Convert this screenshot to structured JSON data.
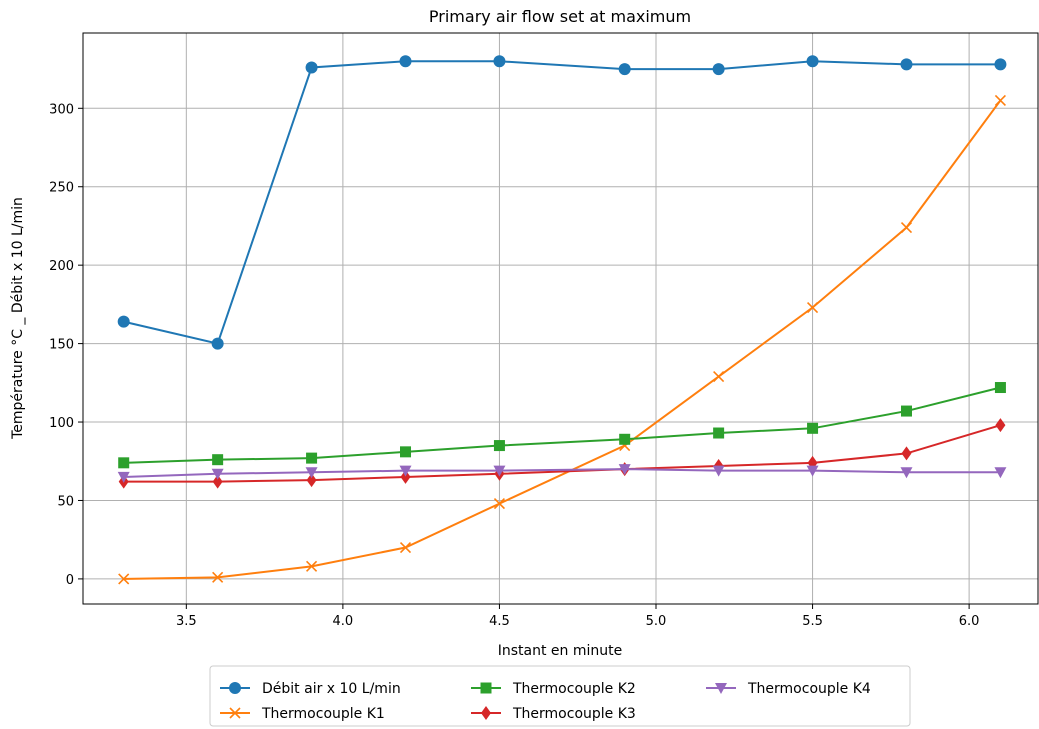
{
  "chart_data": {
    "type": "line",
    "title": "Primary air flow set at maximum",
    "xlabel": "Instant en minute",
    "ylabel": "Température °C _ Débit x 10 L/min",
    "xlim": [
      3.17,
      6.22
    ],
    "ylim": [
      -16,
      348
    ],
    "xticks": [
      3.5,
      4.0,
      4.5,
      5.0,
      5.5,
      6.0
    ],
    "xtick_labels": [
      "3.5",
      "4.0",
      "4.5",
      "5.0",
      "5.5",
      "6.0"
    ],
    "yticks": [
      0,
      50,
      100,
      150,
      200,
      250,
      300
    ],
    "ytick_labels": [
      "0",
      "50",
      "100",
      "150",
      "200",
      "250",
      "300"
    ],
    "grid": true,
    "legend_position": "bottom-center outside",
    "x": [
      3.3,
      3.6,
      3.9,
      4.2,
      4.5,
      4.9,
      5.2,
      5.5,
      5.8,
      6.1
    ],
    "series": [
      {
        "name": "Débit air x 10 L/min",
        "color": "#1f77b4",
        "marker": "circle",
        "values": [
          164,
          150,
          326,
          330,
          330,
          325,
          325,
          330,
          328,
          328
        ]
      },
      {
        "name": "Thermocouple K1",
        "color": "#ff7f0e",
        "marker": "x",
        "values": [
          0,
          1,
          8,
          20,
          48,
          85,
          129,
          173,
          224,
          305
        ]
      },
      {
        "name": "Thermocouple K2",
        "color": "#2ca02c",
        "marker": "square",
        "values": [
          74,
          76,
          77,
          81,
          85,
          89,
          93,
          96,
          107,
          122
        ]
      },
      {
        "name": "Thermocouple K3",
        "color": "#d62728",
        "marker": "diamond",
        "values": [
          62,
          62,
          63,
          65,
          67,
          70,
          72,
          74,
          80,
          98
        ]
      },
      {
        "name": "Thermocouple K4",
        "color": "#9467bd",
        "marker": "triangle-down",
        "values": [
          65,
          67,
          68,
          69,
          69,
          70,
          69,
          69,
          68,
          68
        ]
      }
    ]
  }
}
